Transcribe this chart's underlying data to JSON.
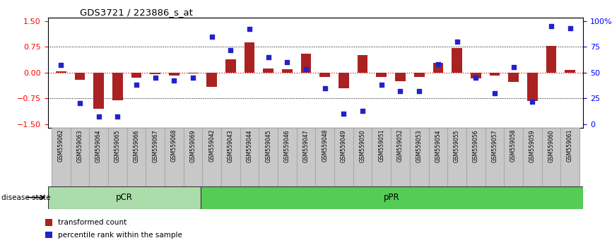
{
  "title": "GDS3721 / 223886_s_at",
  "samples": [
    "GSM559062",
    "GSM559063",
    "GSM559064",
    "GSM559065",
    "GSM559066",
    "GSM559067",
    "GSM559068",
    "GSM559069",
    "GSM559042",
    "GSM559043",
    "GSM559044",
    "GSM559045",
    "GSM559046",
    "GSM559047",
    "GSM559048",
    "GSM559049",
    "GSM559050",
    "GSM559051",
    "GSM559052",
    "GSM559053",
    "GSM559054",
    "GSM559055",
    "GSM559056",
    "GSM559057",
    "GSM559058",
    "GSM559059",
    "GSM559060",
    "GSM559061"
  ],
  "bar_values": [
    0.03,
    -0.22,
    -1.05,
    -0.8,
    -0.15,
    -0.05,
    -0.08,
    -0.03,
    -0.42,
    0.38,
    0.88,
    0.12,
    0.1,
    0.55,
    -0.12,
    -0.45,
    0.5,
    -0.12,
    -0.25,
    -0.12,
    0.28,
    0.72,
    -0.18,
    -0.08,
    -0.28,
    -0.82,
    0.78,
    0.08
  ],
  "dot_values": [
    57,
    20,
    7,
    7,
    38,
    45,
    42,
    45,
    85,
    72,
    92,
    65,
    60,
    53,
    35,
    10,
    13,
    38,
    32,
    32,
    58,
    80,
    45,
    30,
    55,
    22,
    95,
    93
  ],
  "pCR_count": 8,
  "pPR_count": 20,
  "ylim": [
    -1.6,
    1.6
  ],
  "yticks_left": [
    -1.5,
    -0.75,
    0,
    0.75,
    1.5
  ],
  "yticks_right": [
    0,
    25,
    50,
    75,
    100
  ],
  "bar_color": "#AA2222",
  "dot_color": "#2222CC",
  "pCR_color": "#AADDAA",
  "pPR_color": "#55CC55",
  "label_bg_color": "#C8C8C8",
  "label_border_color": "#AAAAAA"
}
